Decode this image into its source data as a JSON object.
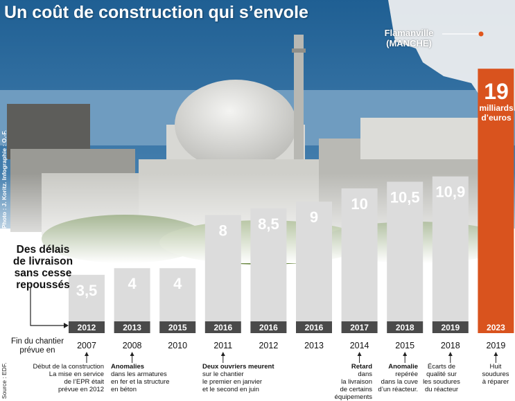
{
  "title": "Un coût de construction qui s’envole",
  "credit": "Photo : J. Koritz. Infographie : O.-F.",
  "source": "Source : EDF.",
  "location": {
    "line1": "Flamanville",
    "line2": "(MANCHE)"
  },
  "subtitle": [
    "Des délais",
    "de livraison",
    "sans cesse",
    "repoussés"
  ],
  "end_label": [
    "Fin du chantier",
    "prévue en"
  ],
  "highlight": {
    "value": "19",
    "unit_line1": "milliards",
    "unit_line2": "d’euros"
  },
  "colors": {
    "bar": "#dcdcdc",
    "highlight": "#d9531e",
    "year_strip": "#4a4a4a",
    "sky": "#2f6f9f",
    "sea": "#5d8fb4"
  },
  "chart_data": {
    "type": "bar",
    "title": "Un coût de construction qui s’envole",
    "unit": "milliards d’euros",
    "categories": [
      "2007",
      "2008",
      "2010",
      "2011",
      "2012",
      "2013",
      "2014",
      "2015",
      "2018",
      "2019"
    ],
    "values": [
      3.5,
      4,
      4,
      8,
      8.5,
      9,
      10,
      10.5,
      10.9,
      19
    ],
    "value_labels": [
      "3,5",
      "4",
      "4",
      "8",
      "8,5",
      "9",
      "10",
      "10,5",
      "10,9",
      "19"
    ],
    "completion_years": [
      "2012",
      "2013",
      "2015",
      "2016",
      "2016",
      "2016",
      "2017",
      "2018",
      "2019",
      "2023"
    ],
    "highlight_index": 9
  },
  "notes": [
    {
      "bold": "",
      "lines": [
        "Début de la construction",
        "La mise en service",
        "de l’EPR était",
        "prévue en 2012"
      ]
    },
    {
      "bold": "Anomalies",
      "lines": [
        "dans les armatures",
        "en fer et la structure",
        "en béton"
      ]
    },
    {
      "bold": "",
      "lines": []
    },
    {
      "bold": "Deux ouvriers meurent",
      "lines": [
        "sur le chantier",
        "le premier en janvier",
        "et le second en juin"
      ]
    },
    {
      "bold": "",
      "lines": []
    },
    {
      "bold": "",
      "lines": []
    },
    {
      "bold": "Retard",
      "lines": [
        "dans",
        "la livraison",
        "de certains",
        "équipements"
      ]
    },
    {
      "bold": "Anomalie",
      "lines": [
        "repérée",
        "dans la cuve",
        "d’un réacteur."
      ]
    },
    {
      "bold": "",
      "lines": [
        "Écarts de",
        "qualité sur",
        "les soudures",
        "du réacteur"
      ]
    },
    {
      "bold": "",
      "lines": [
        "Huit",
        "soudures",
        "à réparer"
      ]
    }
  ]
}
